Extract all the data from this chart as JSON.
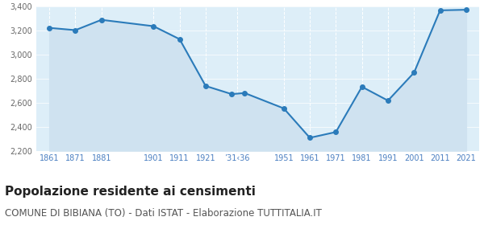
{
  "years": [
    1861,
    1871,
    1881,
    1901,
    1911,
    1921,
    1931,
    1936,
    1951,
    1961,
    1971,
    1981,
    1991,
    2001,
    2011,
    2021
  ],
  "population": [
    3224,
    3205,
    3291,
    3238,
    3130,
    2740,
    2672,
    2681,
    2553,
    2308,
    2356,
    2733,
    2618,
    2851,
    3370,
    3375
  ],
  "x_tick_positions": [
    1861,
    1871,
    1881,
    1901,
    1911,
    1921,
    1933,
    1951,
    1961,
    1971,
    1981,
    1991,
    2001,
    2011,
    2021
  ],
  "x_tick_labels": [
    "1861",
    "1871",
    "1881",
    "1901",
    "1911",
    "1921",
    "’31‹36",
    "1951",
    "1961",
    "1971",
    "1981",
    "1991",
    "2001",
    "2011",
    "2021"
  ],
  "ylim": [
    2200,
    3400
  ],
  "yticks": [
    2200,
    2400,
    2600,
    2800,
    3000,
    3200,
    3400
  ],
  "line_color": "#2b7bba",
  "fill_color": "#cfe2f0",
  "marker_size": 4,
  "line_width": 1.5,
  "bg_color": "#ffffff",
  "plot_bg_color": "#ddeeff",
  "title": "Popolazione residente ai censimenti",
  "subtitle": "COMUNE DI BIBIANA (TO) - Dati ISTAT - Elaborazione TUTTITALIA.IT",
  "title_fontsize": 11,
  "subtitle_fontsize": 8.5,
  "tick_color": "#4a7fc1",
  "ytick_color": "#666666"
}
